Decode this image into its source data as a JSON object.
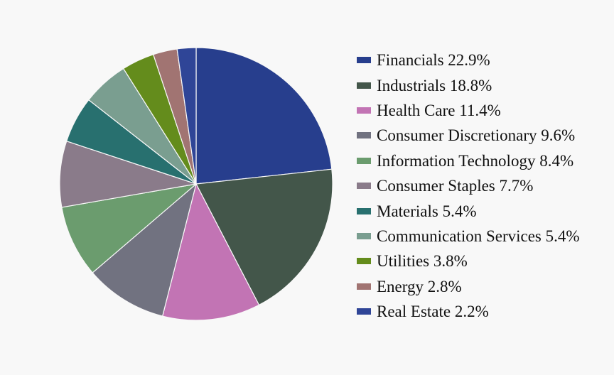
{
  "chart_data": {
    "type": "pie",
    "title": "",
    "legend_position": "right",
    "slices": [
      {
        "label": "Financials 22.9%",
        "category": "Financials",
        "value": 22.9,
        "color": "#273e8d"
      },
      {
        "label": "Industrials 18.8%",
        "category": "Industrials",
        "value": 18.8,
        "color": "#43564a"
      },
      {
        "label": "Health Care 11.4%",
        "category": "Health Care",
        "value": 11.4,
        "color": "#c274b4"
      },
      {
        "label": "Consumer Discretionary 9.6%",
        "category": "Consumer Discretionary",
        "value": 9.6,
        "color": "#717280"
      },
      {
        "label": "Information Technology 8.4%",
        "category": "Information Technology",
        "value": 8.4,
        "color": "#6b9c6e"
      },
      {
        "label": "Consumer Staples 7.7%",
        "category": "Consumer Staples",
        "value": 7.7,
        "color": "#8a7b8a"
      },
      {
        "label": "Materials 5.4%",
        "category": "Materials",
        "value": 5.4,
        "color": "#28706f"
      },
      {
        "label": "Communication Services 5.4%",
        "category": "Communication Services",
        "value": 5.4,
        "color": "#7a9e90"
      },
      {
        "label": "Utilities 3.8%",
        "category": "Utilities",
        "value": 3.8,
        "color": "#648c1c"
      },
      {
        "label": "Energy 2.8%",
        "category": "Energy",
        "value": 2.8,
        "color": "#a17472"
      },
      {
        "label": "Real Estate 2.2%",
        "category": "Real Estate",
        "value": 2.2,
        "color": "#2f4597"
      }
    ]
  }
}
